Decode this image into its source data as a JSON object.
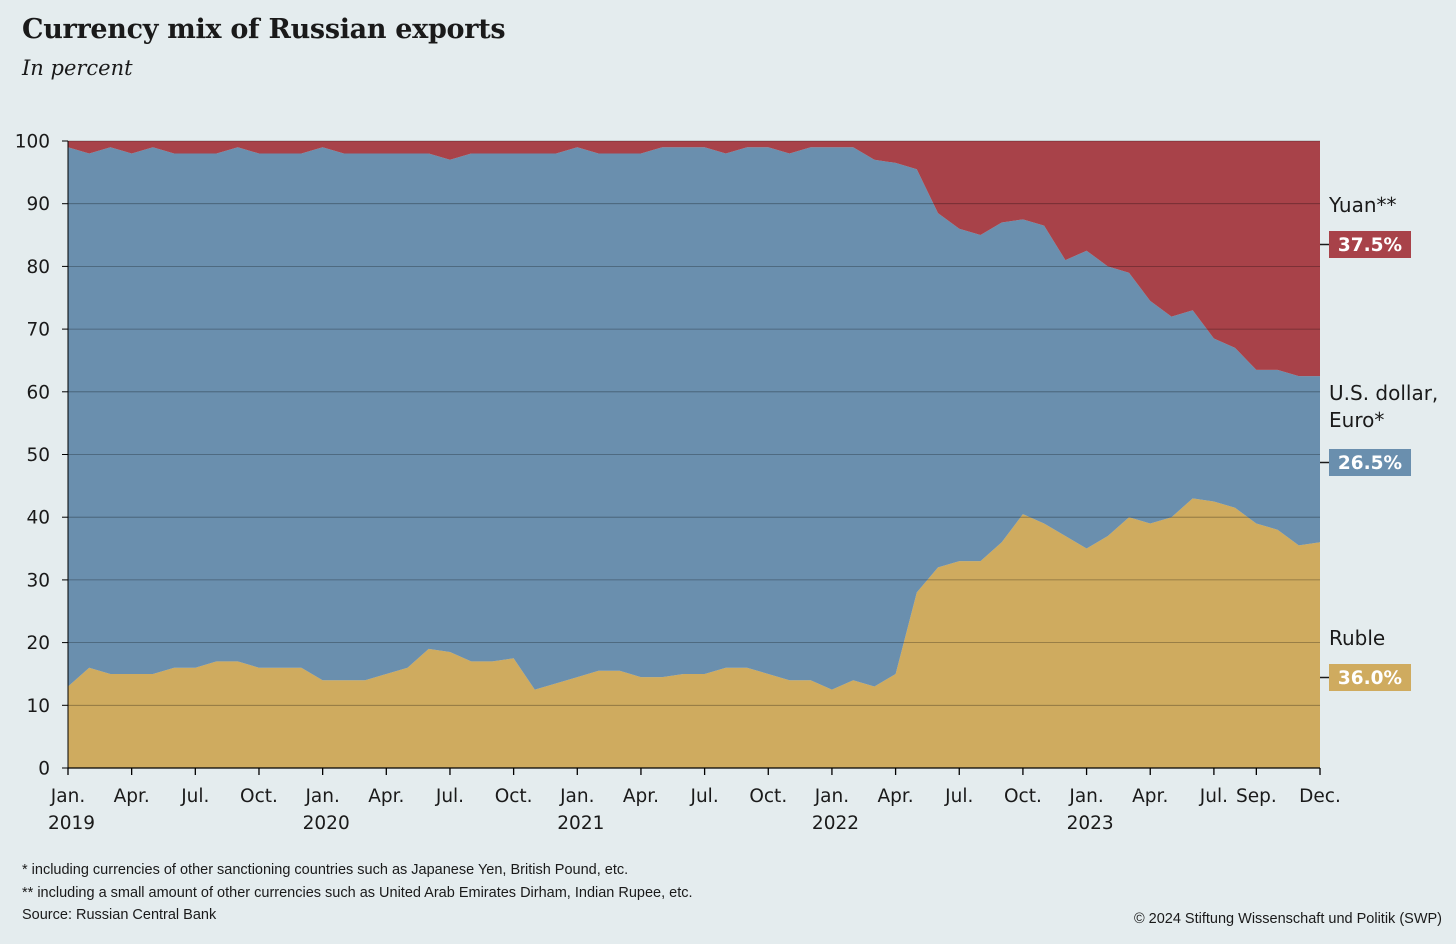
{
  "title": "Currency mix of Russian exports",
  "subtitle": "In percent",
  "footnotes": [
    "*   including currencies of other sanctioning countries such as Japanese Yen, British Pound, etc.",
    "**  including a small amount of other currencies such as United Arab Emirates Dirham, Indian Rupee, etc."
  ],
  "source": "Source: Russian Central Bank",
  "copyright": "© 2024 Stiftung Wissenschaft und Politik (SWP)",
  "colors": {
    "background": "#e4ecee",
    "ruble": "#cfab5f",
    "usd_euro": "#6a8fae",
    "yuan": "#a84249"
  },
  "chart_data": {
    "type": "area",
    "stacked": true,
    "ylim": [
      0,
      100
    ],
    "yticks": [
      0,
      10,
      20,
      30,
      40,
      50,
      60,
      70,
      80,
      90,
      100
    ],
    "grid": true,
    "x_tick_labels": [
      {
        "label": "Jan.",
        "year": "2019"
      },
      {
        "label": "Apr.",
        "year": ""
      },
      {
        "label": "Jul.",
        "year": ""
      },
      {
        "label": "Oct.",
        "year": ""
      },
      {
        "label": "Jan.",
        "year": "2020"
      },
      {
        "label": "Apr.",
        "year": ""
      },
      {
        "label": "Jul.",
        "year": ""
      },
      {
        "label": "Oct.",
        "year": ""
      },
      {
        "label": "Jan.",
        "year": "2021"
      },
      {
        "label": "Apr.",
        "year": ""
      },
      {
        "label": "Jul.",
        "year": ""
      },
      {
        "label": "Oct.",
        "year": ""
      },
      {
        "label": "Jan.",
        "year": "2022"
      },
      {
        "label": "Apr.",
        "year": ""
      },
      {
        "label": "Jul.",
        "year": ""
      },
      {
        "label": "Oct.",
        "year": ""
      },
      {
        "label": "Jan.",
        "year": "2023"
      },
      {
        "label": "Apr.",
        "year": ""
      },
      {
        "label": "Jul.",
        "year": ""
      },
      {
        "label": "Sep.",
        "year": ""
      },
      {
        "label": "Dec.",
        "year": ""
      }
    ],
    "x_tick_months": [
      "2019-01",
      "2019-04",
      "2019-07",
      "2019-10",
      "2020-01",
      "2020-04",
      "2020-07",
      "2020-10",
      "2021-01",
      "2021-04",
      "2021-07",
      "2021-10",
      "2022-01",
      "2022-04",
      "2022-07",
      "2022-10",
      "2023-01",
      "2023-04",
      "2023-07",
      "2023-09",
      "2023-12"
    ],
    "x": [
      "2019-01",
      "2019-02",
      "2019-03",
      "2019-04",
      "2019-05",
      "2019-06",
      "2019-07",
      "2019-08",
      "2019-09",
      "2019-10",
      "2019-11",
      "2019-12",
      "2020-01",
      "2020-02",
      "2020-03",
      "2020-04",
      "2020-05",
      "2020-06",
      "2020-07",
      "2020-08",
      "2020-09",
      "2020-10",
      "2020-11",
      "2020-12",
      "2021-01",
      "2021-02",
      "2021-03",
      "2021-04",
      "2021-05",
      "2021-06",
      "2021-07",
      "2021-08",
      "2021-09",
      "2021-10",
      "2021-11",
      "2021-12",
      "2022-01",
      "2022-02",
      "2022-03",
      "2022-04",
      "2022-05",
      "2022-06",
      "2022-07",
      "2022-08",
      "2022-09",
      "2022-10",
      "2022-11",
      "2022-12",
      "2023-01",
      "2023-02",
      "2023-03",
      "2023-04",
      "2023-05",
      "2023-06",
      "2023-07",
      "2023-08",
      "2023-09",
      "2023-10",
      "2023-11",
      "2023-12"
    ],
    "series": [
      {
        "name": "Ruble",
        "color": "#cfab5f",
        "end_label": "36.0%",
        "values": [
          13,
          16,
          15,
          15,
          15,
          16,
          16,
          17,
          17,
          16,
          16,
          16,
          14,
          14,
          14,
          15,
          16,
          19,
          18.5,
          17,
          17,
          17.5,
          12.5,
          13.5,
          14.5,
          15.5,
          15.5,
          14.5,
          14.5,
          15,
          15,
          16,
          16,
          15,
          14,
          14,
          12.5,
          14,
          13,
          15,
          28,
          32,
          33,
          33,
          36,
          40.5,
          39,
          37,
          35,
          37,
          40,
          39,
          40,
          43,
          42.5,
          41.5,
          39,
          38,
          35.5,
          36
        ]
      },
      {
        "name": "U.S. dollar,\nEuro*",
        "color": "#6a8fae",
        "end_label": "26.5%",
        "values": [
          86,
          82,
          84,
          83,
          84,
          82,
          82,
          81,
          82,
          82,
          82,
          82,
          85,
          84,
          84,
          83,
          82,
          79,
          78.5,
          81,
          81,
          80.5,
          85.5,
          84.5,
          84.5,
          82.5,
          82.5,
          83.5,
          84.5,
          84,
          84,
          82,
          83,
          84,
          84,
          85,
          86.5,
          85,
          84,
          81.5,
          67.5,
          56.5,
          53,
          52,
          51,
          47,
          47.5,
          44,
          47.5,
          43,
          39,
          35.5,
          32,
          30,
          26,
          25.5,
          24.5,
          25.5,
          27,
          26.5
        ]
      },
      {
        "name": "Yuan**",
        "color": "#a84249",
        "end_label": "37.5%",
        "values": [
          1,
          2,
          1,
          2,
          1,
          2,
          2,
          2,
          1,
          2,
          2,
          2,
          1,
          2,
          2,
          2,
          2,
          2,
          3,
          2,
          2,
          2,
          2,
          2,
          1,
          2,
          2,
          2,
          1,
          1,
          1,
          2,
          1,
          1,
          2,
          1,
          1,
          1,
          3,
          3.5,
          4.5,
          11.5,
          14,
          15,
          13,
          12.5,
          13.5,
          19,
          17.5,
          20,
          21,
          25.5,
          28,
          27,
          31.5,
          33,
          36.5,
          36.5,
          37.5,
          37.5
        ]
      }
    ]
  }
}
